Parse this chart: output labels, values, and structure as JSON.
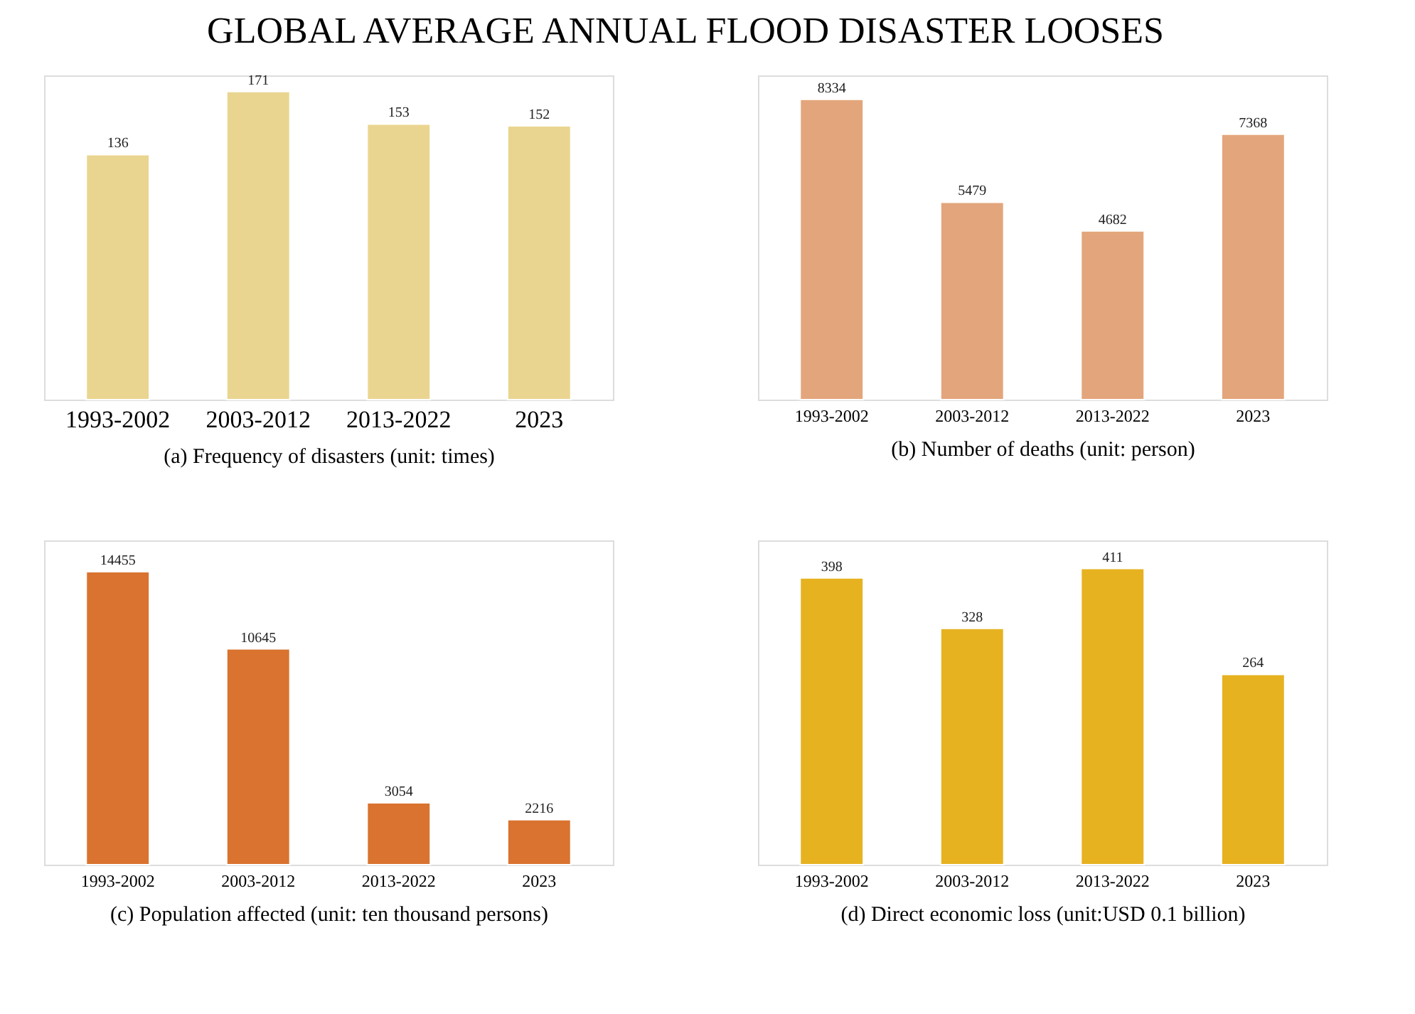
{
  "chart_data": [
    {
      "type": "bar",
      "title": "GLOBAL AVERAGE ANNUAL FLOOD DISASTER LOOSES",
      "xlabel": "(a) Frequency of disasters (unit: times)",
      "categories": [
        "1993-2002",
        "2003-2012",
        "2013-2022",
        "2023"
      ],
      "values": [
        136,
        171,
        153,
        152
      ],
      "color": "#ead590",
      "data_labels": true
    },
    {
      "type": "bar",
      "xlabel": "(b) Number of deaths (unit: person)",
      "categories": [
        "1993-2002",
        "2003-2012",
        "2013-2022",
        "2023"
      ],
      "values": [
        8334,
        5479,
        4682,
        7368
      ],
      "color": "#e3a57b",
      "data_labels": true
    },
    {
      "type": "bar",
      "xlabel": "(c) Population affected (unit: ten thousand persons)",
      "categories": [
        "1993-2002",
        "2003-2012",
        "2013-2022",
        "2023"
      ],
      "values": [
        14455,
        10645,
        3054,
        2216
      ],
      "color": "#d9732f",
      "data_labels": true
    },
    {
      "type": "bar",
      "xlabel": "(d) Direct economic loss (unit:USD 0.1 billion)",
      "categories": [
        "1993-2002",
        "2003-2012",
        "2013-2022",
        "2023"
      ],
      "values": [
        398,
        328,
        411,
        264
      ],
      "color": "#e6b220",
      "data_labels": true
    }
  ]
}
